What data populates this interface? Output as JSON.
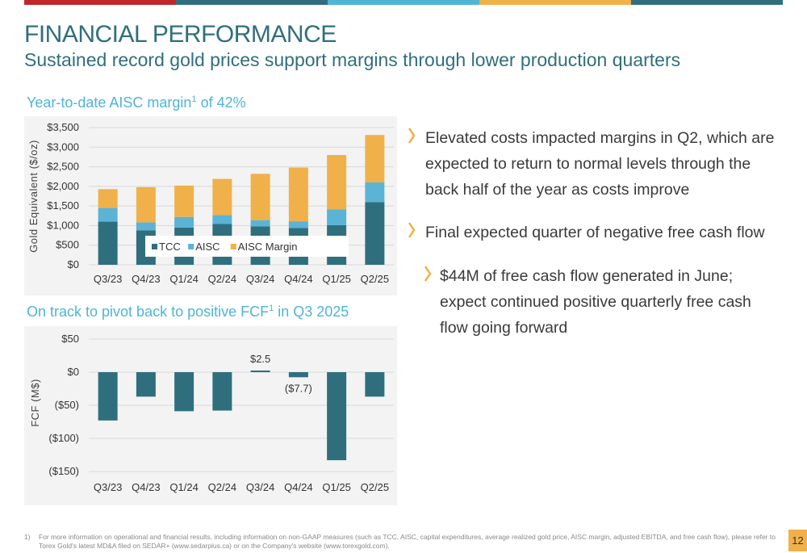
{
  "colors": {
    "topbar": [
      "#c0272d",
      "#2f6f7d",
      "#4fb4d6",
      "#f0b14a",
      "#2f6f7d"
    ],
    "tcc": "#2f6f7d",
    "aisc": "#5bb3d6",
    "margin": "#f0b14a",
    "fcf": "#2f6f7d",
    "accent": "#2f6f7d",
    "heading": "#4fb4d6"
  },
  "header": {
    "title": "FINANCIAL PERFORMANCE",
    "subtitle": "Sustained record gold prices support margins through lower production quarters"
  },
  "chart1": {
    "heading_pre": "Year-to-date AISC margin",
    "heading_sup": "1",
    "heading_post": " of 42%"
  },
  "chart2": {
    "heading_pre": "On track to pivot back to positive FCF",
    "heading_sup": "1",
    "heading_post": " in Q3 2025"
  },
  "chart_data": [
    {
      "type": "bar",
      "stacked": true,
      "categories": [
        "Q3/23",
        "Q4/23",
        "Q1/24",
        "Q2/24",
        "Q3/24",
        "Q4/24",
        "Q1/25",
        "Q2/25"
      ],
      "series": [
        {
          "name": "TCC",
          "values": [
            1100,
            880,
            950,
            1040,
            980,
            940,
            1010,
            1600
          ]
        },
        {
          "name": "AISC",
          "values": [
            350,
            200,
            270,
            230,
            160,
            170,
            400,
            500
          ]
        },
        {
          "name": "AISC Margin",
          "values": [
            480,
            900,
            800,
            920,
            1180,
            1370,
            1390,
            1210
          ]
        }
      ],
      "ylabel": "Gold Equivalent ($/oz)",
      "ylim": [
        0,
        3500
      ],
      "yticks": [
        "$0",
        "$500",
        "$1,000",
        "$1,500",
        "$2,000",
        "$2,500",
        "$3,000",
        "$3,500"
      ],
      "ytick_values": [
        0,
        500,
        1000,
        1500,
        2000,
        2500,
        3000,
        3500
      ],
      "grid": true,
      "legend": "bottom-center"
    },
    {
      "type": "bar",
      "categories": [
        "Q3/23",
        "Q4/23",
        "Q1/24",
        "Q2/24",
        "Q3/24",
        "Q4/24",
        "Q1/25",
        "Q2/25"
      ],
      "values": [
        -73,
        -37,
        -59,
        -58,
        2.5,
        -7.7,
        -133,
        -37
      ],
      "data_labels": {
        "4": "$2.5",
        "5": "($7.7)"
      },
      "ylabel": "FCF (M$)",
      "ylim": [
        -150,
        50
      ],
      "yticks": [
        "($150)",
        "($100)",
        "($50)",
        "$0",
        "$50"
      ],
      "ytick_values": [
        -150,
        -100,
        -50,
        0,
        50
      ],
      "grid": true
    }
  ],
  "bullets": [
    {
      "level": 1,
      "text": "Elevated costs impacted margins in Q2, which are expected to return to normal levels through the back half of the year as costs improve"
    },
    {
      "level": 1,
      "text": "Final expected quarter of negative free cash flow"
    },
    {
      "level": 2,
      "text": "$44M of free cash flow generated in June; expect continued positive quarterly free cash flow going forward"
    }
  ],
  "footnote": {
    "number": "1)",
    "text": "For more information on operational and financial results, including information on non-GAAP measures (such as TCC, AISC, capital expenditures, average realized gold price, AISC margin, adjusted EBITDA, and free cash flow), please refer to Torex Gold's latest MD&A filed on SEDAR+ (www.sedarplus.ca) or on the Company's website (www.torexgold.com)."
  },
  "page_number": "12"
}
